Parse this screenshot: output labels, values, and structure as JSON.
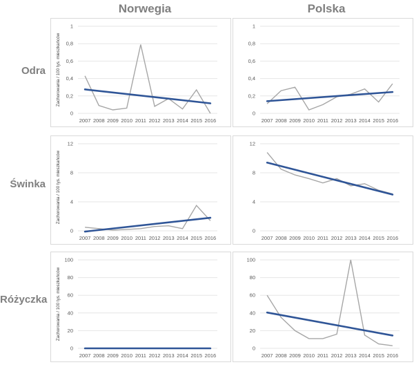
{
  "columns": [
    "Norwegia",
    "Polska"
  ],
  "rows": [
    "Odra",
    "Świnka",
    "Różyczka"
  ],
  "colors": {
    "series": "#a6a6a6",
    "trend": "#2f5597",
    "gridline": "#e6e6e6",
    "frame": "#d9d9d9"
  },
  "chart_data": [
    {
      "type": "line",
      "column": "Norwegia",
      "row": "Odra",
      "x": [
        "2007",
        "2008",
        "2009",
        "2010",
        "2011",
        "2012",
        "2013",
        "2014",
        "2015",
        "2016"
      ],
      "ylabel": "Zachorowania / 100 tys. mieszkańców",
      "ylim": [
        0,
        1
      ],
      "yticks": [
        "0",
        "0,2",
        "0,4",
        "0,6",
        "0,8",
        "1"
      ],
      "ytick_values": [
        0,
        0.2,
        0.4,
        0.6,
        0.8,
        1
      ],
      "values": [
        0.43,
        0.09,
        0.04,
        0.06,
        0.79,
        0.08,
        0.17,
        0.05,
        0.27,
        0.0
      ],
      "trend": [
        0.275,
        0.115
      ],
      "grid": true
    },
    {
      "type": "line",
      "column": "Polska",
      "row": "Odra",
      "x": [
        "2007",
        "2008",
        "2009",
        "2010",
        "2011",
        "2012",
        "2013",
        "2014",
        "2015",
        "2016"
      ],
      "ylabel": "",
      "ylim": [
        0,
        1
      ],
      "yticks": [
        "0",
        "0,2",
        "0,4",
        "0,6",
        "0,8",
        "1"
      ],
      "ytick_values": [
        0,
        0.2,
        0.4,
        0.6,
        0.8,
        1
      ],
      "values": [
        0.11,
        0.26,
        0.3,
        0.04,
        0.1,
        0.19,
        0.22,
        0.28,
        0.13,
        0.34
      ],
      "trend": [
        0.14,
        0.245
      ],
      "grid": true
    },
    {
      "type": "line",
      "column": "Norwegia",
      "row": "Świnka",
      "x": [
        "2007",
        "2008",
        "2009",
        "2010",
        "2011",
        "2012",
        "2013",
        "2014",
        "2015",
        "2016"
      ],
      "ylabel": "Zachorowania / 100 tys. mieszkańców",
      "ylim": [
        0,
        12
      ],
      "yticks": [
        "0",
        "4",
        "8",
        "12"
      ],
      "ytick_values": [
        0,
        4,
        8,
        12
      ],
      "values": [
        0.5,
        0.3,
        0.1,
        0.2,
        0.3,
        0.6,
        0.7,
        0.3,
        3.5,
        1.4
      ],
      "trend": [
        -0.1,
        1.8
      ],
      "grid": true
    },
    {
      "type": "line",
      "column": "Polska",
      "row": "Świnka",
      "x": [
        "2007",
        "2008",
        "2009",
        "2010",
        "2011",
        "2012",
        "2013",
        "2014",
        "2015",
        "2016"
      ],
      "ylabel": "",
      "ylim": [
        0,
        12
      ],
      "yticks": [
        "0",
        "4",
        "8",
        "12"
      ],
      "ytick_values": [
        0,
        4,
        8,
        12
      ],
      "values": [
        10.8,
        8.5,
        7.7,
        7.2,
        6.6,
        7.2,
        6.2,
        6.5,
        5.6,
        5.1
      ],
      "trend": [
        9.4,
        5.0
      ],
      "grid": true
    },
    {
      "type": "line",
      "column": "Norwegia",
      "row": "Różyczka",
      "x": [
        "2007",
        "2008",
        "2009",
        "2010",
        "2011",
        "2012",
        "2013",
        "2014",
        "2015",
        "2016"
      ],
      "ylabel": "Zachorowania / 100 tys. mieszkańców",
      "ylim": [
        0,
        100
      ],
      "yticks": [
        "0",
        "20",
        "40",
        "60",
        "80",
        "100"
      ],
      "ytick_values": [
        0,
        20,
        40,
        60,
        80,
        100
      ],
      "values": [
        0,
        0,
        0,
        0,
        0,
        0,
        0,
        0,
        0,
        0
      ],
      "trend": [
        0,
        0
      ],
      "grid": true
    },
    {
      "type": "line",
      "column": "Polska",
      "row": "Różyczka",
      "x": [
        "2007",
        "2008",
        "2009",
        "2010",
        "2011",
        "2012",
        "2013",
        "2014",
        "2015",
        "2016"
      ],
      "ylabel": "",
      "ylim": [
        0,
        100
      ],
      "yticks": [
        "0",
        "20",
        "40",
        "60",
        "80",
        "100"
      ],
      "ytick_values": [
        0,
        20,
        40,
        60,
        80,
        100
      ],
      "values": [
        60,
        35,
        20,
        11,
        11,
        16,
        100,
        15,
        5,
        3
      ],
      "trend": [
        40.5,
        14.5
      ],
      "grid": true
    }
  ]
}
